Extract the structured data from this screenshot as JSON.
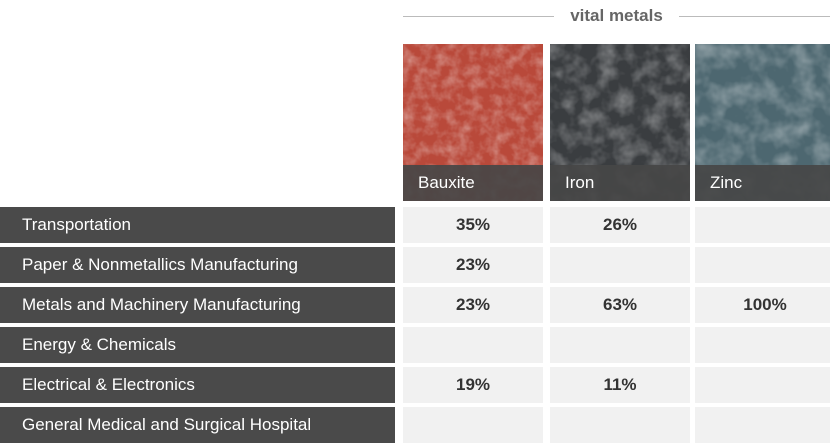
{
  "header": {
    "title": "vital metals"
  },
  "table": {
    "columns": [
      "Bauxite",
      "Iron",
      "Zinc"
    ],
    "rows": [
      {
        "label": "Transportation",
        "cells": [
          "35%",
          "26%",
          null
        ]
      },
      {
        "label": "Paper & Nonmetallics Manufacturing",
        "cells": [
          "23%",
          null,
          null
        ]
      },
      {
        "label": "Metals and Machinery Manufacturing",
        "cells": [
          "23%",
          "63%",
          "100%"
        ]
      },
      {
        "label": "Energy & Chemicals",
        "cells": [
          null,
          null,
          null
        ]
      },
      {
        "label": "Electrical & Electronics",
        "cells": [
          "19%",
          "11%",
          null
        ]
      },
      {
        "label": "General Medical and Surgical Hospital",
        "cells": [
          null,
          null,
          null
        ]
      }
    ]
  }
}
